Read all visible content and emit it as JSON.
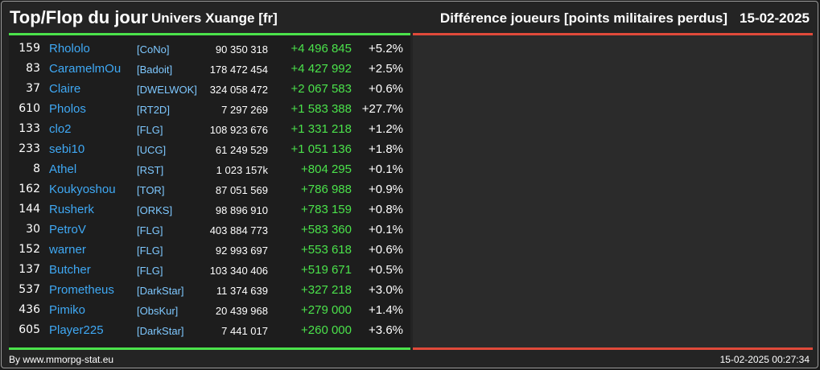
{
  "header": {
    "title": "Top/Flop du jour",
    "universe": "Univers Xuange [fr]",
    "metric": "Différence joueurs [points militaires perdus]",
    "date": "15-02-2025"
  },
  "colors": {
    "top_line": "#4be24b",
    "flop_line": "#e04a3a",
    "player_name": "#3fa9f5",
    "alliance": "#7ec8ff",
    "gain": "#4be24b"
  },
  "top": [
    {
      "rank": "159",
      "player": "Rhololo",
      "alliance": "[CoNo]",
      "points": "90 350 318",
      "diff": "+4 496 845",
      "pct": "+5.2%"
    },
    {
      "rank": "83",
      "player": "CaramelmOu",
      "alliance": "[Badoit]",
      "points": "178 472 454",
      "diff": "+4 427 992",
      "pct": "+2.5%"
    },
    {
      "rank": "37",
      "player": "Claire",
      "alliance": "[DWELWOK]",
      "points": "324 058 472",
      "diff": "+2 067 583",
      "pct": "+0.6%"
    },
    {
      "rank": "610",
      "player": "Pholos",
      "alliance": "[RT2D]",
      "points": "7 297 269",
      "diff": "+1 583 388",
      "pct": "+27.7%"
    },
    {
      "rank": "133",
      "player": "clo2",
      "alliance": "[FLG]",
      "points": "108 923 676",
      "diff": "+1 331 218",
      "pct": "+1.2%"
    },
    {
      "rank": "233",
      "player": "sebi10",
      "alliance": "[UCG]",
      "points": "61 249 529",
      "diff": "+1 051 136",
      "pct": "+1.8%"
    },
    {
      "rank": "8",
      "player": "Athel",
      "alliance": "[RST]",
      "points": "1 023 157k",
      "diff": "+804 295",
      "pct": "+0.1%"
    },
    {
      "rank": "162",
      "player": "Koukyoshou",
      "alliance": "[TOR]",
      "points": "87 051 569",
      "diff": "+786 988",
      "pct": "+0.9%"
    },
    {
      "rank": "144",
      "player": "Rusherk",
      "alliance": "[ORKS]",
      "points": "98 896 910",
      "diff": "+783 159",
      "pct": "+0.8%"
    },
    {
      "rank": "30",
      "player": "PetroV",
      "alliance": "[FLG]",
      "points": "403 884 773",
      "diff": "+583 360",
      "pct": "+0.1%"
    },
    {
      "rank": "152",
      "player": "warner",
      "alliance": "[FLG]",
      "points": "92 993 697",
      "diff": "+553 618",
      "pct": "+0.6%"
    },
    {
      "rank": "137",
      "player": "Butcher",
      "alliance": "[FLG]",
      "points": "103 340 406",
      "diff": "+519 671",
      "pct": "+0.5%"
    },
    {
      "rank": "537",
      "player": "Prometheus",
      "alliance": "[DarkStar]",
      "points": "11 374 639",
      "diff": "+327 218",
      "pct": "+3.0%"
    },
    {
      "rank": "436",
      "player": "Pimiko",
      "alliance": "[ObsKur]",
      "points": "20 439 968",
      "diff": "+279 000",
      "pct": "+1.4%"
    },
    {
      "rank": "605",
      "player": "Player225",
      "alliance": "[DarkStar]",
      "points": "7 441 017",
      "diff": "+260 000",
      "pct": "+3.6%"
    }
  ],
  "footer": {
    "credit": "By www.mmorpg-stat.eu",
    "timestamp": "15-02-2025 00:27:34"
  }
}
